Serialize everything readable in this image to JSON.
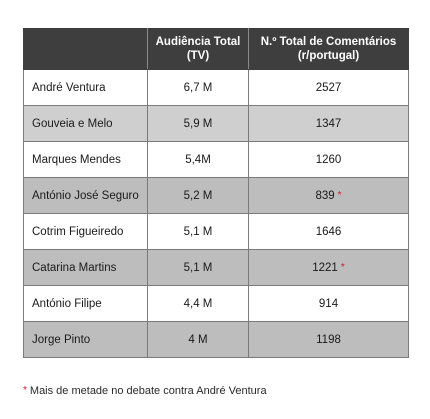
{
  "table": {
    "headers": {
      "name": "",
      "audience_line1": "Audiência Total",
      "audience_line2": "(TV)",
      "comments_line1": "N.º Total de Comentários",
      "comments_line2": "(r/portugal)"
    },
    "rows": [
      {
        "name": "André Ventura",
        "audience": "6,7 M",
        "comments": "2527",
        "marked": false
      },
      {
        "name": "Gouveia e Melo",
        "audience": "5,9 M",
        "comments": "1347",
        "marked": false
      },
      {
        "name": "Marques Mendes",
        "audience": "5,4M",
        "comments": "1260",
        "marked": false
      },
      {
        "name": "António José Seguro",
        "audience": "5,2 M",
        "comments": "839",
        "marked": true
      },
      {
        "name": "Cotrim Figueiredo",
        "audience": "5,1 M",
        "comments": "1646",
        "marked": false
      },
      {
        "name": "Catarina Martins",
        "audience": "5,1 M",
        "comments": "1221",
        "marked": true
      },
      {
        "name": "António Filipe",
        "audience": "4,4 M",
        "comments": "914",
        "marked": false
      },
      {
        "name": "Jorge Pinto",
        "audience": "4 M",
        "comments": "1198",
        "marked": false
      }
    ],
    "marker_symbol": "*",
    "colors": {
      "header_bg": "#3e3e3e",
      "shade_bg": "#bdbdbd",
      "marker": "#d0181f"
    }
  },
  "footnote": {
    "symbol": "*",
    "text": "Mais de metade no debate contra André Ventura"
  }
}
